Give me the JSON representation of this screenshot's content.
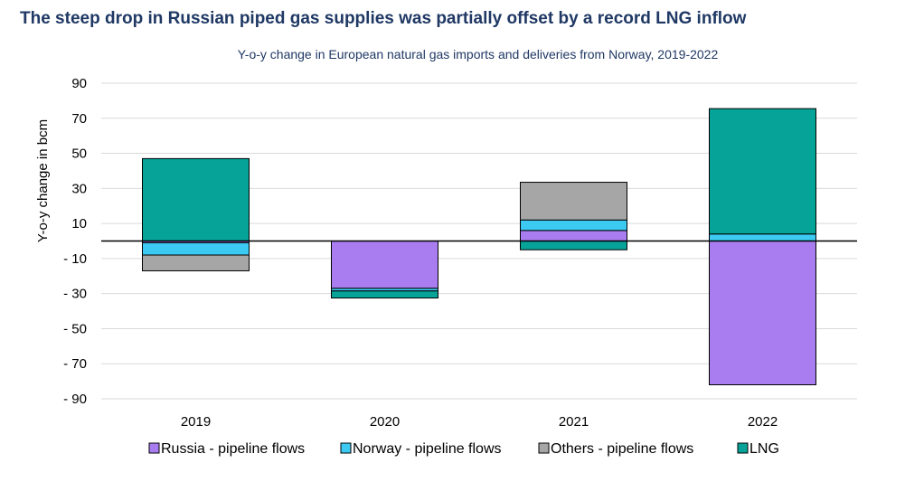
{
  "chart_data": {
    "type": "bar",
    "stacked": true,
    "title": "The steep drop in Russian piped gas supplies was partially offset by a record LNG inflow",
    "subtitle": "Y-o-y change in European natural gas imports and deliveries from Norway, 2019-2022",
    "ylabel": "Y-o-y change in bcm",
    "xlabel": "",
    "categories": [
      "2019",
      "2020",
      "2021",
      "2022"
    ],
    "ylim": [
      -90,
      90
    ],
    "yticks": [
      90,
      70,
      50,
      30,
      10,
      -10,
      -30,
      -50,
      -70,
      -90
    ],
    "ytick_labels": [
      "90",
      "70",
      "50",
      "30",
      "10",
      "- 10",
      "- 30",
      "- 50",
      "- 70",
      "- 90"
    ],
    "series": [
      {
        "name": "Russia - pipeline flows",
        "color": "#a97df0",
        "values": [
          -1,
          -27,
          6,
          -82
        ]
      },
      {
        "name": "Norway - pipeline flows",
        "color": "#3dcaf2",
        "values": [
          -7,
          -1.5,
          6,
          4
        ]
      },
      {
        "name": "Others - pipeline flows",
        "color": "#a6a6a6",
        "values": [
          -9,
          0,
          21.5,
          0
        ]
      },
      {
        "name": "LNG",
        "color": "#06a398",
        "values": [
          47,
          -4,
          -5,
          71.5
        ]
      }
    ],
    "legend_position": "bottom",
    "grid": true
  }
}
